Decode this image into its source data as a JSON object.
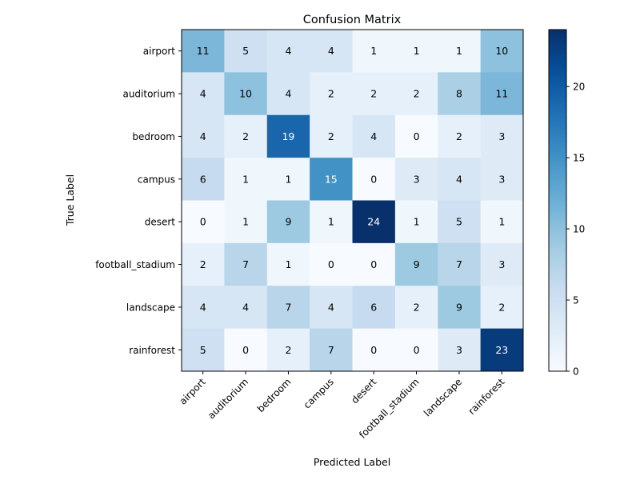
{
  "chart_data": {
    "type": "heatmap",
    "title": "Confusion Matrix",
    "xlabel": "Predicted Label",
    "ylabel": "True Label",
    "x_categories": [
      "airport",
      "auditorium",
      "bedroom",
      "campus",
      "desert",
      "football_stadium",
      "landscape",
      "rainforest"
    ],
    "y_categories": [
      "airport",
      "auditorium",
      "bedroom",
      "campus",
      "desert",
      "football_stadium",
      "landscape",
      "rainforest"
    ],
    "values": [
      [
        11,
        5,
        4,
        4,
        1,
        1,
        1,
        10
      ],
      [
        4,
        10,
        4,
        2,
        2,
        2,
        8,
        11
      ],
      [
        4,
        2,
        19,
        2,
        4,
        0,
        2,
        3
      ],
      [
        6,
        1,
        1,
        15,
        0,
        3,
        4,
        3
      ],
      [
        0,
        1,
        9,
        1,
        24,
        1,
        5,
        1
      ],
      [
        2,
        7,
        1,
        0,
        0,
        9,
        7,
        3
      ],
      [
        4,
        4,
        7,
        4,
        6,
        2,
        9,
        2
      ],
      [
        5,
        0,
        2,
        7,
        0,
        0,
        3,
        23
      ]
    ],
    "colormap": "Blues",
    "vmin": 0,
    "vmax": 24,
    "colorbar_ticks": [
      0,
      5,
      10,
      15,
      20
    ],
    "colorbar_tick_labels": [
      "0",
      "5",
      "10",
      "15",
      "20"
    ],
    "annotation_threshold": 12,
    "colors": {
      "annotation_dark": "#000000",
      "annotation_light": "#ffffff"
    }
  }
}
